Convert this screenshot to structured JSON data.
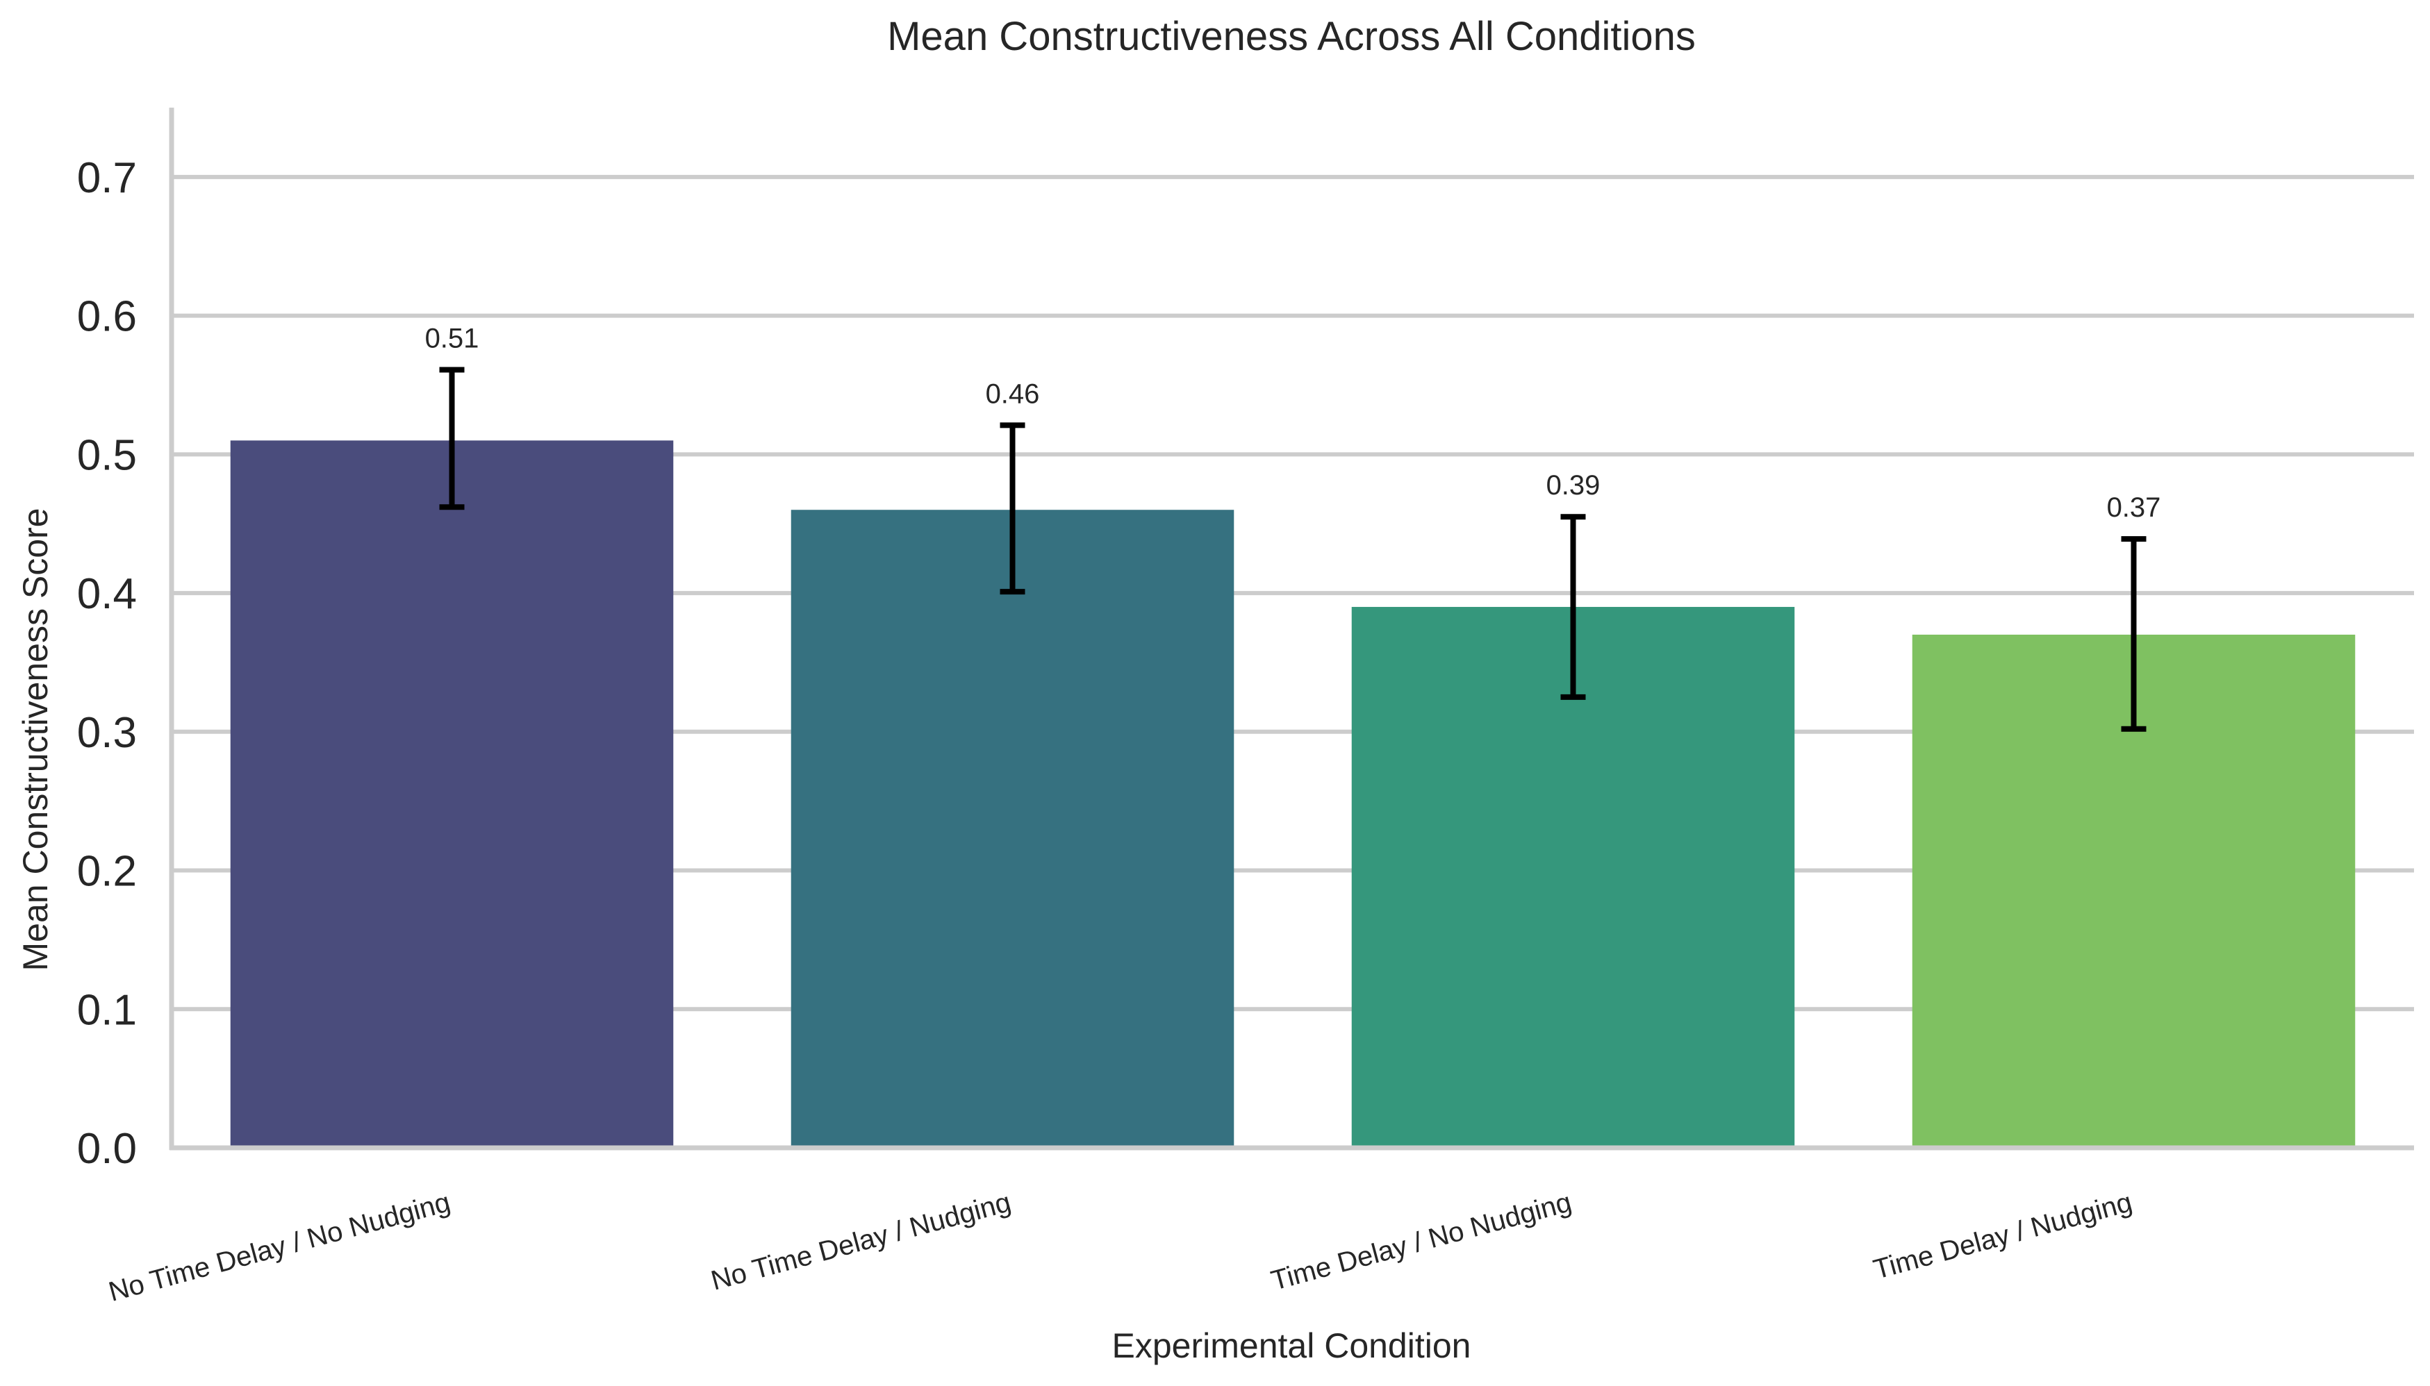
{
  "chart_data": {
    "type": "bar",
    "title": "Mean Constructiveness Across All Conditions",
    "xlabel": "Experimental Condition",
    "ylabel": "Mean Constructiveness Score",
    "categories": [
      "No Time Delay / No Nudging",
      "No Time Delay / Nudging",
      "Time Delay / No Nudging",
      "Time Delay / Nudging"
    ],
    "values": [
      0.51,
      0.46,
      0.39,
      0.37
    ],
    "value_labels": [
      "0.51",
      "0.46",
      "0.39",
      "0.37"
    ],
    "error_bars": [
      [
        0.462,
        0.561
      ],
      [
        0.401,
        0.521
      ],
      [
        0.325,
        0.455
      ],
      [
        0.302,
        0.439
      ]
    ],
    "colors": [
      "#4a4c7c",
      "#367180",
      "#35977c",
      "#7fc161"
    ],
    "ylim": [
      0,
      0.75
    ],
    "yticks": [
      0.0,
      0.1,
      0.2,
      0.3,
      0.4,
      0.5,
      0.6,
      0.7
    ],
    "ytick_labels": [
      "0.0",
      "0.1",
      "0.2",
      "0.3",
      "0.4",
      "0.5",
      "0.6",
      "0.7"
    ],
    "grid": true,
    "grid_axis": "y"
  }
}
